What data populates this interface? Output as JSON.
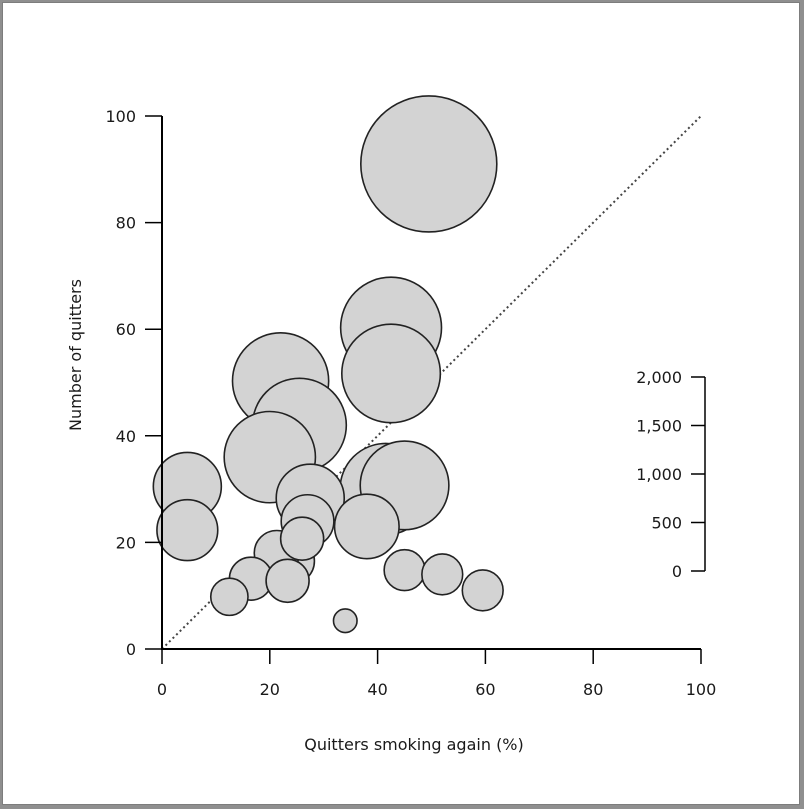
{
  "chart_data": {
    "type": "scatter",
    "subtype": "bubble",
    "xlabel": "Quitters smoking again (%)",
    "ylabel": "Number of quitters",
    "xlim": [
      0,
      100
    ],
    "ylim": [
      0,
      100
    ],
    "x_ticks": [
      "0",
      "20",
      "40",
      "60",
      "80",
      "100"
    ],
    "y_ticks": [
      "0",
      "20",
      "40",
      "60",
      "80",
      "100"
    ],
    "reference_line": {
      "style": "dotted",
      "from": [
        0,
        0
      ],
      "to": [
        100,
        100
      ]
    },
    "size_legend": {
      "placement": "right",
      "ticks": [
        "0",
        "500",
        "1,000",
        "1,500",
        "2,000"
      ],
      "range": [
        0,
        2000
      ]
    },
    "colors": {
      "bubble_fill": "#d3d3d3",
      "bubble_stroke": "#222222"
    },
    "points": [
      {
        "x": 49.5,
        "y": 91.0,
        "size": 2000
      },
      {
        "x": 42.5,
        "y": 60.3,
        "size": 1100
      },
      {
        "x": 42.5,
        "y": 51.7,
        "size": 1050
      },
      {
        "x": 22.0,
        "y": 50.3,
        "size": 1000
      },
      {
        "x": 25.5,
        "y": 42.0,
        "size": 950
      },
      {
        "x": 20.0,
        "y": 36.0,
        "size": 900
      },
      {
        "x": 45.0,
        "y": 30.7,
        "size": 850
      },
      {
        "x": 41.5,
        "y": 30.0,
        "size": 900
      },
      {
        "x": 27.5,
        "y": 28.3,
        "size": 500
      },
      {
        "x": 4.7,
        "y": 30.5,
        "size": 500
      },
      {
        "x": 4.7,
        "y": 22.3,
        "size": 400
      },
      {
        "x": 38.0,
        "y": 23.0,
        "size": 450
      },
      {
        "x": 27.0,
        "y": 24.0,
        "size": 300
      },
      {
        "x": 26.0,
        "y": 20.7,
        "size": 200
      },
      {
        "x": 21.3,
        "y": 18.0,
        "size": 220
      },
      {
        "x": 24.0,
        "y": 16.5,
        "size": 230
      },
      {
        "x": 16.5,
        "y": 13.2,
        "size": 200
      },
      {
        "x": 23.3,
        "y": 12.8,
        "size": 200
      },
      {
        "x": 45.0,
        "y": 14.8,
        "size": 180
      },
      {
        "x": 52.0,
        "y": 14.0,
        "size": 180
      },
      {
        "x": 59.5,
        "y": 11.0,
        "size": 180
      },
      {
        "x": 12.5,
        "y": 9.8,
        "size": 150
      },
      {
        "x": 34.0,
        "y": 5.3,
        "size": 60
      }
    ]
  }
}
